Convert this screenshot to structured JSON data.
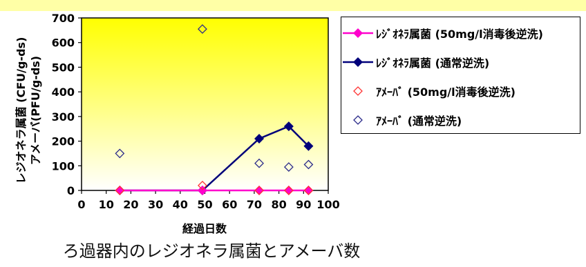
{
  "caption": "ろ過器内のレジオネラ属菌とアメーバ数",
  "chart_data": {
    "type": "line",
    "title": "",
    "xlabel": "経過日数",
    "ylabel_line1": "レジオネラ属菌 (CFU/g-ds)",
    "ylabel_line2": "アメーバ(PFU/g-ds)",
    "xlim": [
      0,
      100
    ],
    "ylim": [
      0,
      700
    ],
    "x_ticks": [
      "0",
      "10",
      "20",
      "30",
      "40",
      "50",
      "60",
      "70",
      "80",
      "90",
      "100"
    ],
    "y_ticks": [
      "0",
      "100",
      "200",
      "300",
      "400",
      "500",
      "600",
      "700"
    ],
    "grid": false,
    "legend_position": "right",
    "plot_background": "yellow gradient",
    "series": [
      {
        "name": "ﾚｼﾞｵﾈﾗ属菌 (50mg/l消毒後逆洗)",
        "color": "#ff00cc",
        "marker": "filled-diamond",
        "line": true,
        "points": [
          [
            15.5,
            0
          ],
          [
            49,
            0
          ],
          [
            72,
            0
          ],
          [
            84,
            0
          ],
          [
            92,
            0
          ]
        ]
      },
      {
        "name": "ﾚｼﾞｵﾈﾗ属菌 (通常逆洗)",
        "color": "#00007a",
        "marker": "filled-diamond",
        "line": true,
        "points": [
          [
            15.5,
            0
          ],
          [
            49,
            0
          ],
          [
            72,
            210
          ],
          [
            84,
            260
          ],
          [
            92,
            180
          ]
        ]
      },
      {
        "name": "ｱﾒｰﾊﾞ (50mg/l消毒後逆洗)",
        "color": "#ff3333",
        "marker": "open-diamond",
        "line": false,
        "points": [
          [
            15.5,
            0
          ],
          [
            49,
            20
          ],
          [
            72,
            0
          ],
          [
            84,
            0
          ],
          [
            92,
            0
          ]
        ]
      },
      {
        "name": "ｱﾒｰﾊﾞ (通常逆洗)",
        "color": "#2a2a8a",
        "marker": "open-diamond",
        "line": false,
        "points": [
          [
            15.5,
            150
          ],
          [
            49,
            655
          ],
          [
            72,
            110
          ],
          [
            84,
            95
          ],
          [
            92,
            105
          ]
        ]
      }
    ]
  }
}
